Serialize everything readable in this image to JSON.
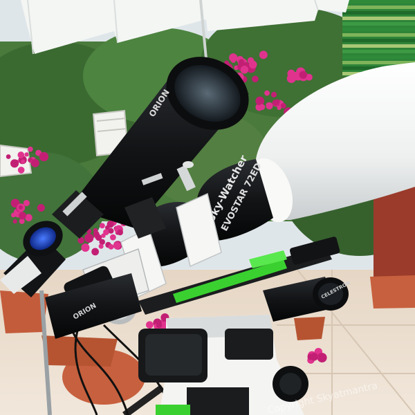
{
  "photo": {
    "main_tube_brand": "Sky-Watcher",
    "main_tube_model": "EVOSTAR 72ED",
    "finder_brand": "ORION",
    "lower_scope_brand": "ORION",
    "eyepiece_brand": "CELESTRON",
    "watermark": "Copyright Skyatmantra",
    "colors": {
      "sky": "#dfe6ea",
      "umbrella": "#f4f6f4",
      "foliage": "#3d6b35",
      "bougainvillea": "#e0338e",
      "telescope_white": "#f7f7f5",
      "telescope_black": "#151719",
      "mount_green": "#3ad130",
      "floor_tile": "#e9dccd",
      "terracotta": "#c7603e"
    }
  }
}
